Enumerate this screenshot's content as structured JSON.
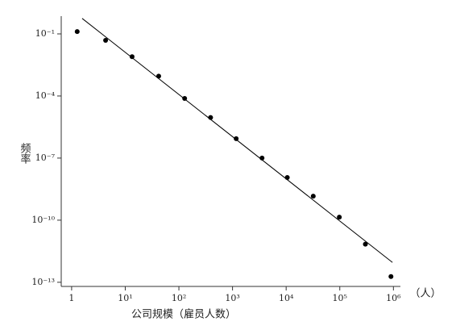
{
  "chart_data": {
    "type": "scatter",
    "x_label": "公司规模（雇员人数）",
    "x_unit": "（人）",
    "y_label": "频率",
    "x": [
      1.27,
      4.3,
      13.4,
      42,
      128,
      390,
      1170,
      3550,
      10500,
      32000,
      98000,
      300000,
      900000
    ],
    "series": [
      {
        "color": "#000000",
        "values": [
          0.13,
          0.049,
          0.0079,
          0.00091,
          7.6e-05,
          9.1e-06,
          8.7e-07,
          1e-07,
          1.15e-08,
          1.45e-09,
          1.4e-10,
          6.9e-12,
          1.9e-13
        ]
      }
    ],
    "line": {
      "color": "#000000",
      "x": [
        1.57,
        960000
      ],
      "y": [
        0.56,
        9.1e-13
      ]
    },
    "xscale": "log",
    "yscale": "log",
    "xlim": [
      0.64,
      1350000
    ],
    "ylim": [
      6.3e-14,
      0.72
    ],
    "xticks": [
      1,
      {
        "value": 10,
        "label": "10¹"
      },
      {
        "value": 100,
        "label": "10²"
      },
      {
        "value": 1000,
        "label": "10³"
      },
      {
        "value": 10000,
        "label": "10⁴"
      },
      {
        "value": 100000,
        "label": "10⁵"
      },
      {
        "value": 1000000,
        "label": "10⁶"
      }
    ],
    "yticks": [
      {
        "value": 0.1,
        "label": "10⁻¹"
      },
      {
        "value": 0.0001,
        "label": "10⁻⁴"
      },
      {
        "value": 1e-07,
        "label": "10⁻⁷"
      },
      {
        "value": 1e-10,
        "label": "10⁻¹⁰"
      },
      {
        "value": 1e-13,
        "label": "10⁻¹³"
      }
    ],
    "grid": false
  }
}
